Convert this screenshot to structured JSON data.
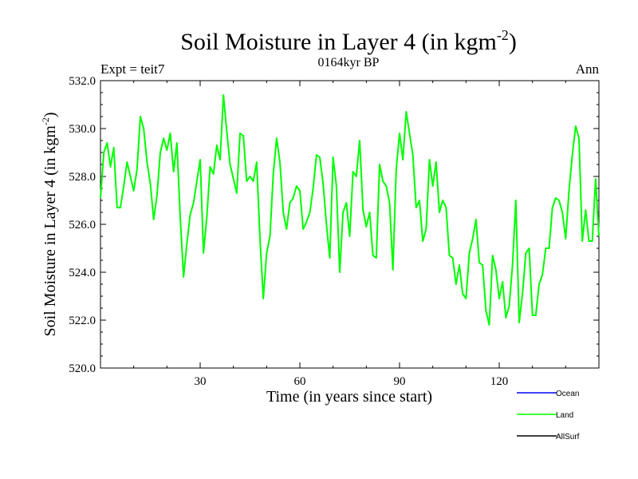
{
  "chart_data": {
    "type": "line",
    "title": "Soil Moisture in Layer 4 (in kgm",
    "title_sup": "-2",
    "title_close": ")",
    "subtitle_left": "Expt = teit7",
    "subtitle_center": "0164kyr BP",
    "subtitle_right": "Ann",
    "xlabel": "Time (in years since start)",
    "ylabel": "Soil Moisture in Layer 4 (in kgm",
    "ylabel_sup": "-2",
    "ylabel_close": ")",
    "xlim": [
      0,
      150
    ],
    "ylim": [
      520.0,
      532.0
    ],
    "x_ticks": [
      30,
      60,
      90,
      120
    ],
    "x_tick_labels": [
      "30",
      "60",
      "90",
      "120"
    ],
    "y_ticks": [
      520.0,
      522.0,
      524.0,
      526.0,
      528.0,
      530.0,
      532.0
    ],
    "y_tick_labels": [
      "520.0",
      "522.0",
      "524.0",
      "526.0",
      "528.0",
      "530.0",
      "532.0"
    ],
    "legend": [
      {
        "name": "Ocean",
        "color": "#0000ff"
      },
      {
        "name": "Land",
        "color": "#00ff00"
      },
      {
        "name": "AllSurf",
        "color": "#000000"
      }
    ],
    "series": [
      {
        "name": "Land",
        "color": "#00ff00",
        "x": [
          0,
          1,
          2,
          3,
          4,
          5,
          6,
          7,
          8,
          9,
          10,
          11,
          12,
          13,
          14,
          15,
          16,
          17,
          18,
          19,
          20,
          21,
          22,
          23,
          24,
          25,
          26,
          27,
          28,
          29,
          30,
          31,
          32,
          33,
          34,
          35,
          36,
          37,
          38,
          39,
          40,
          41,
          42,
          43,
          44,
          45,
          46,
          47,
          48,
          49,
          50,
          51,
          52,
          53,
          54,
          55,
          56,
          57,
          58,
          59,
          60,
          61,
          62,
          63,
          64,
          65,
          66,
          67,
          68,
          69,
          70,
          71,
          72,
          73,
          74,
          75,
          76,
          77,
          78,
          79,
          80,
          81,
          82,
          83,
          84,
          85,
          86,
          87,
          88,
          89,
          90,
          91,
          92,
          93,
          94,
          95,
          96,
          97,
          98,
          99,
          100,
          101,
          102,
          103,
          104,
          105,
          106,
          107,
          108,
          109,
          110,
          111,
          112,
          113,
          114,
          115,
          116,
          117,
          118,
          119,
          120,
          121,
          122,
          123,
          124,
          125,
          126,
          127,
          128,
          129,
          130,
          131,
          132,
          133,
          134,
          135,
          136,
          137,
          138,
          139,
          140,
          141,
          142,
          143,
          144,
          145,
          146,
          147,
          148,
          149,
          150
        ],
        "values": [
          527.1,
          529.0,
          529.4,
          528.4,
          529.2,
          526.7,
          526.7,
          527.6,
          528.6,
          528.0,
          527.4,
          528.3,
          530.5,
          530.0,
          528.6,
          527.7,
          526.2,
          527.2,
          529.0,
          529.6,
          529.1,
          529.8,
          528.2,
          529.4,
          526.3,
          523.8,
          525.2,
          526.4,
          526.9,
          527.8,
          528.7,
          524.8,
          526.3,
          528.4,
          528.1,
          529.3,
          528.7,
          531.4,
          529.9,
          528.5,
          527.9,
          527.3,
          529.8,
          529.7,
          527.8,
          528.0,
          527.8,
          528.6,
          525.4,
          522.9,
          524.8,
          525.5,
          528.1,
          529.6,
          528.6,
          526.5,
          525.8,
          526.9,
          527.1,
          527.6,
          527.4,
          525.8,
          526.1,
          526.5,
          527.5,
          528.9,
          528.8,
          527.7,
          526.0,
          524.6,
          528.8,
          527.6,
          524.0,
          526.5,
          526.9,
          525.5,
          528.2,
          528.0,
          529.5,
          526.6,
          525.9,
          526.5,
          524.7,
          524.6,
          528.5,
          527.8,
          527.6,
          526.9,
          524.1,
          528.3,
          529.8,
          528.7,
          530.7,
          529.8,
          528.9,
          526.7,
          527.0,
          525.3,
          525.8,
          528.7,
          527.6,
          528.6,
          526.5,
          527.0,
          526.7,
          524.7,
          524.6,
          523.5,
          524.3,
          523.1,
          522.9,
          524.8,
          525.4,
          526.2,
          524.4,
          524.3,
          522.4,
          521.8,
          524.7,
          524.1,
          522.9,
          523.6,
          522.1,
          522.6,
          524.3,
          527.0,
          521.9,
          523.1,
          524.8,
          525.0,
          522.2,
          522.2,
          523.5,
          523.9,
          525.0,
          525.0,
          526.7,
          527.1,
          527.0,
          526.5,
          525.4,
          527.4,
          528.9,
          530.1,
          529.6,
          525.3,
          526.6,
          525.3,
          525.3,
          527.9,
          525.5
        ]
      }
    ]
  }
}
